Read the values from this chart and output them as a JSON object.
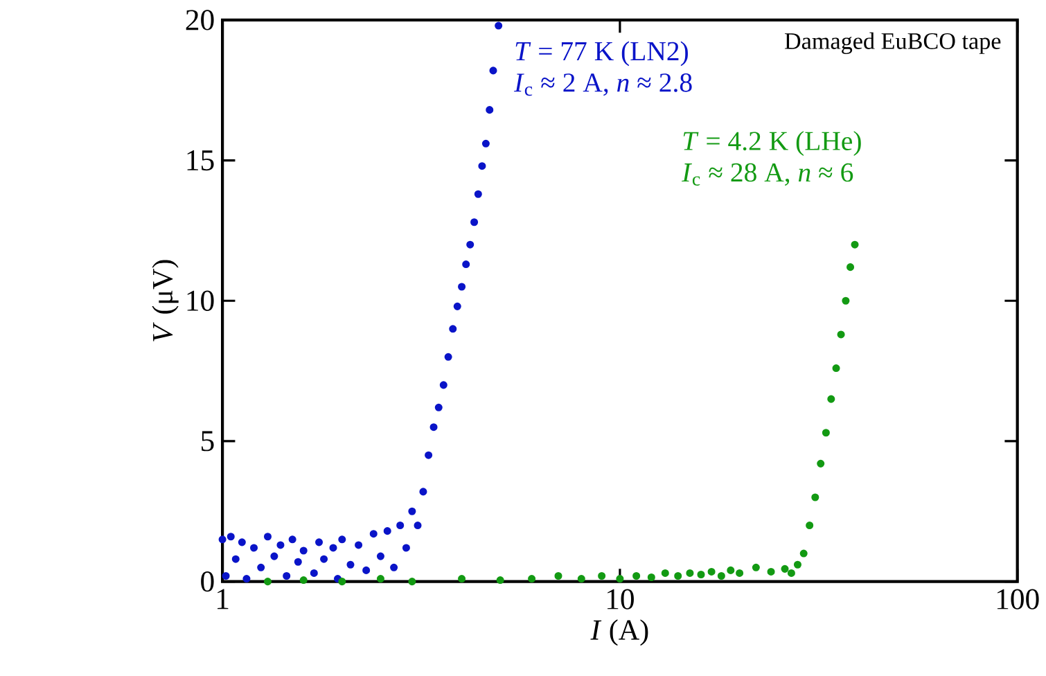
{
  "chart_data": {
    "type": "scatter",
    "xlabel": "*I* (A)",
    "ylabel": "*V* (μV)",
    "log": "x",
    "xlim": [
      1,
      100
    ],
    "xticks": [
      1,
      10,
      100
    ],
    "ylim": [
      0,
      20
    ],
    "yticks": [
      0,
      5,
      10,
      15,
      20
    ],
    "grid": false,
    "legend": false,
    "annotations": [
      "Damaged EuBCO tape",
      "*I*$_{c}$ ≈ 2 A, *n* ≈ 2.8",
      "*I*$_{c}$ ≈ 28 A, *n* ≈ 6"
    ],
    "series": [
      {
        "name": "*T* = 77 K (LN2)",
        "color": "#0a14c8",
        "x": [
          1.0,
          1.02,
          1.05,
          1.08,
          1.12,
          1.15,
          1.2,
          1.25,
          1.3,
          1.35,
          1.4,
          1.45,
          1.5,
          1.55,
          1.6,
          1.7,
          1.75,
          1.8,
          1.9,
          1.95,
          2.0,
          2.1,
          2.2,
          2.3,
          2.4,
          2.5,
          2.6,
          2.7,
          2.8,
          2.9,
          3.0,
          3.1,
          3.2,
          3.3,
          3.4,
          3.5,
          3.6,
          3.7,
          3.8,
          3.9,
          4.0,
          4.1,
          4.2,
          4.3,
          4.4,
          4.5,
          4.6,
          4.7,
          4.8,
          4.95
        ],
        "values": [
          1.5,
          0.2,
          1.6,
          0.8,
          1.4,
          0.1,
          1.2,
          0.5,
          1.6,
          0.9,
          1.3,
          0.2,
          1.5,
          0.7,
          1.1,
          0.3,
          1.4,
          0.8,
          1.2,
          0.1,
          1.5,
          0.6,
          1.3,
          0.4,
          1.7,
          0.9,
          1.8,
          0.5,
          2.0,
          1.2,
          2.5,
          2.0,
          3.2,
          4.5,
          5.5,
          6.2,
          7.0,
          8.0,
          9.0,
          9.8,
          10.5,
          11.3,
          12.0,
          12.8,
          13.8,
          14.8,
          15.6,
          16.8,
          18.2,
          19.8
        ]
      },
      {
        "name": "*T* = 4.2 K (LHe)",
        "color": "#139a13",
        "x": [
          1.3,
          1.6,
          2.0,
          2.5,
          3.0,
          4.0,
          5.0,
          6.0,
          7,
          8,
          9,
          10,
          11,
          12,
          13,
          14,
          15,
          16,
          17,
          18,
          19,
          20,
          22,
          24,
          26,
          27,
          28,
          29,
          30,
          31,
          32,
          33,
          34,
          35,
          36,
          37,
          38,
          39
        ],
        "values": [
          0.0,
          0.05,
          0.0,
          0.1,
          0.0,
          0.1,
          0.05,
          0.1,
          0.2,
          0.1,
          0.2,
          0.1,
          0.2,
          0.15,
          0.3,
          0.2,
          0.3,
          0.25,
          0.35,
          0.2,
          0.4,
          0.3,
          0.5,
          0.35,
          0.45,
          0.3,
          0.6,
          1.0,
          2.0,
          3.0,
          4.2,
          5.3,
          6.5,
          7.6,
          8.8,
          10.0,
          11.2,
          12.0
        ]
      }
    ]
  }
}
